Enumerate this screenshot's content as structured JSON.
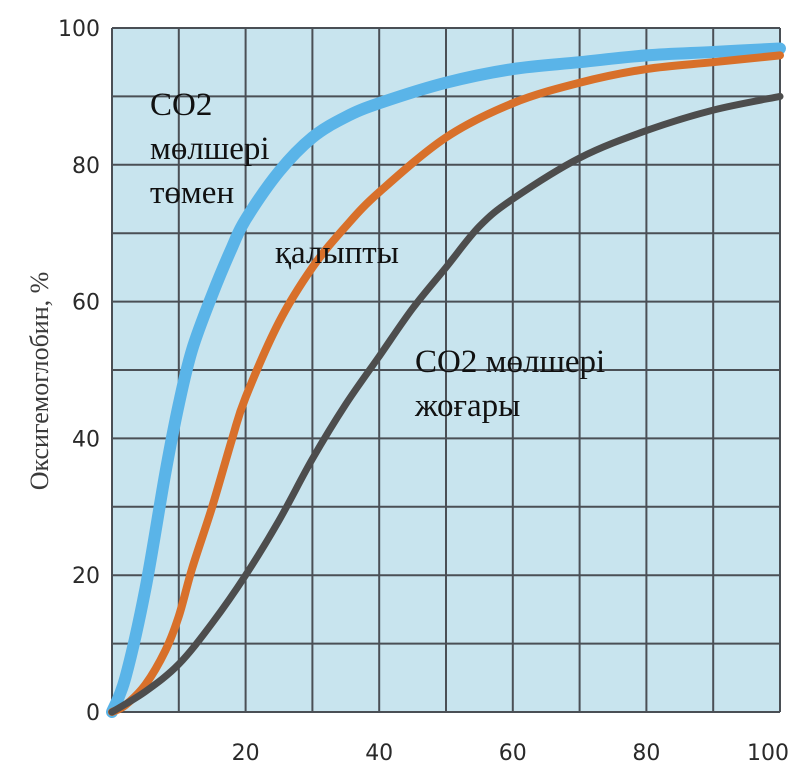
{
  "chart_data": {
    "type": "line",
    "title": "",
    "xlabel": "",
    "ylabel": "Оксигемоглобин, %",
    "xlim": [
      0,
      100
    ],
    "ylim": [
      0,
      100
    ],
    "x_ticks": [
      "20",
      "40",
      "60",
      "80",
      "100"
    ],
    "y_ticks": [
      "0",
      "20",
      "40",
      "60",
      "80",
      "100"
    ],
    "grid": true,
    "background": "#c8e4ee",
    "series": [
      {
        "color": "#5ab4e8",
        "x": [
          0,
          2,
          5,
          8,
          10,
          12,
          15,
          18,
          20,
          25,
          30,
          35,
          40,
          50,
          60,
          70,
          80,
          90,
          100
        ],
        "y": [
          0,
          5,
          18,
          35,
          45,
          53,
          61,
          68,
          72,
          79,
          84,
          87,
          89,
          92,
          94,
          95,
          96,
          96.5,
          97
        ]
      },
      {
        "color": "#d8702a",
        "x": [
          0,
          2,
          5,
          8,
          10,
          12,
          15,
          18,
          20,
          25,
          30,
          35,
          40,
          50,
          60,
          70,
          80,
          90,
          100
        ],
        "y": [
          0,
          1,
          4,
          9,
          14,
          21,
          30,
          40,
          46,
          57,
          65,
          71,
          76,
          84,
          89,
          92,
          94,
          95,
          96
        ]
      },
      {
        "color": "#4d4d4d",
        "x": [
          0,
          5,
          10,
          15,
          20,
          25,
          30,
          35,
          40,
          45,
          50,
          55,
          60,
          70,
          80,
          90,
          100
        ],
        "y": [
          0,
          3,
          7,
          13,
          20,
          28,
          37,
          45,
          52,
          59,
          65,
          71,
          75,
          81,
          85,
          88,
          90
        ]
      }
    ],
    "annotations": [
      {
        "lines": [
          "CO2",
          "мөлшері",
          "төмен"
        ]
      },
      {
        "lines": [
          "қалыпты"
        ]
      },
      {
        "lines": [
          "CO2 мөлшері",
          "жоғары"
        ]
      }
    ]
  }
}
